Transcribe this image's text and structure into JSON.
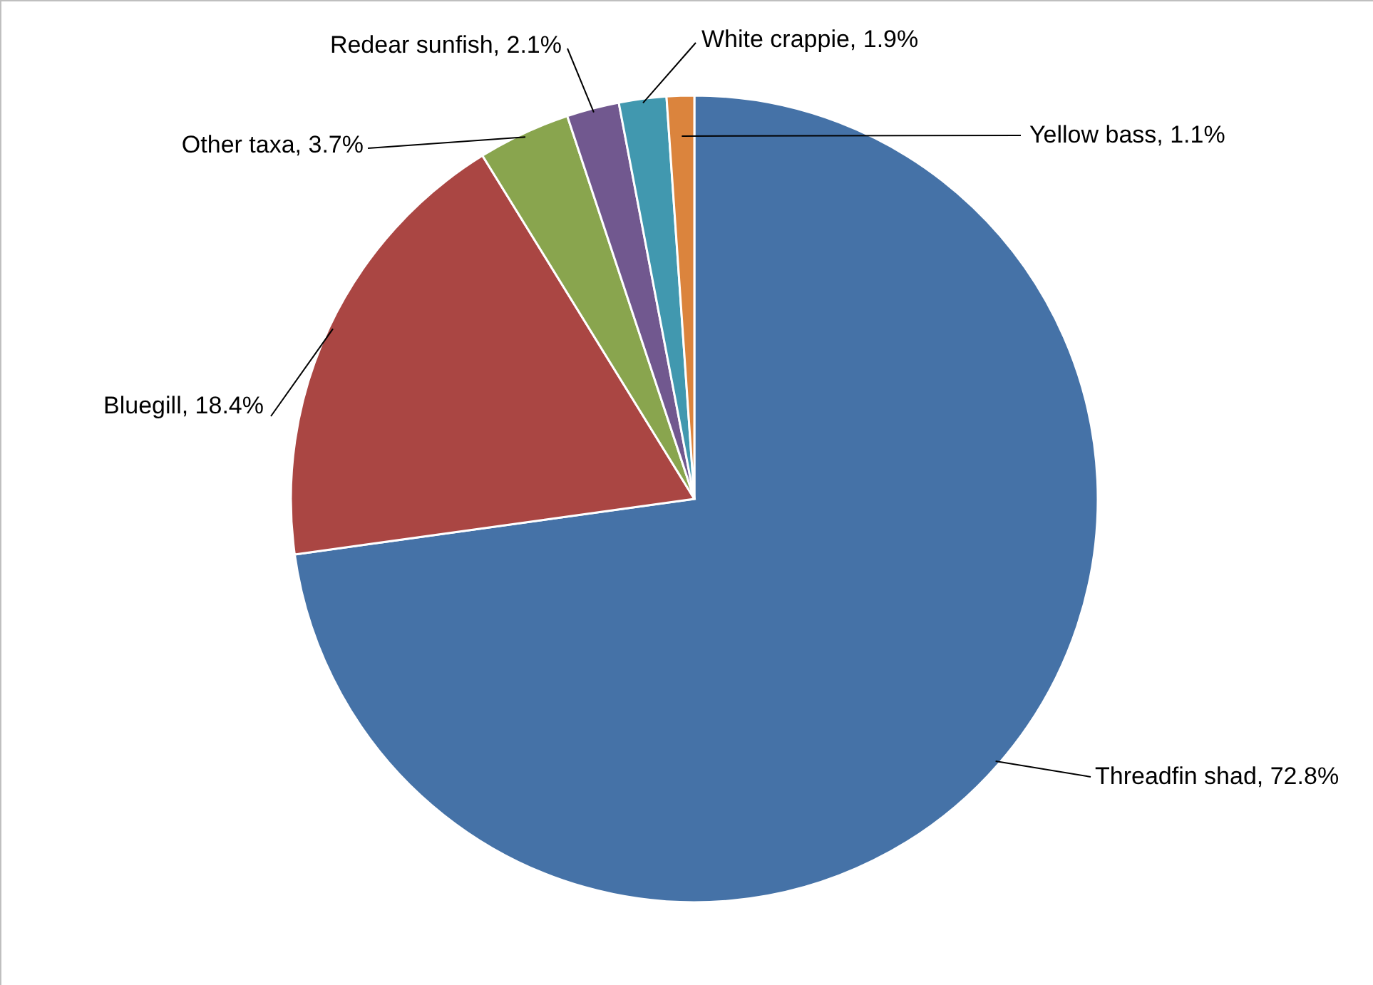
{
  "chart_data": {
    "type": "pie",
    "categories": [
      "Threadfin shad",
      "Bluegill",
      "Other taxa",
      "Redear sunfish",
      "White crappie",
      "Yellow bass"
    ],
    "values": [
      72.8,
      18.4,
      3.7,
      2.1,
      1.9,
      1.1
    ],
    "value_labels": [
      "72.8%",
      "18.4%",
      "3.7%",
      "2.1%",
      "1.9%",
      "1.1%"
    ],
    "colors": [
      "#4572a7",
      "#aa4643",
      "#89a54e",
      "#71588f",
      "#4198af",
      "#db843d"
    ]
  }
}
